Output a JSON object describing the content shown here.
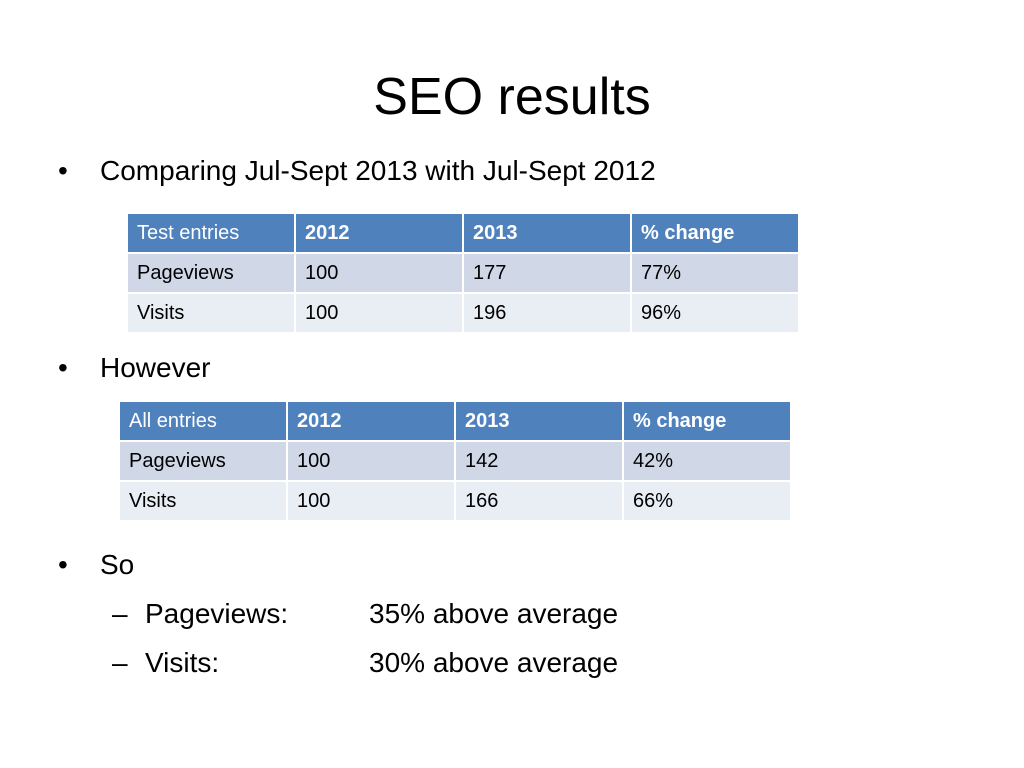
{
  "slide": {
    "title": "SEO results",
    "bullets": [
      "Comparing Jul-Sept 2013 with Jul-Sept 2012",
      "However",
      "So"
    ],
    "bullet_symbol": "•",
    "dash_symbol": "–",
    "sub_bullets": [
      {
        "label": "Pageviews:",
        "value": "35% above average"
      },
      {
        "label": "Visits:",
        "value": "30% above average"
      }
    ]
  },
  "table_test": {
    "header": [
      "Test entries",
      "2012",
      "2013",
      "% change"
    ],
    "rows": [
      [
        "Pageviews",
        "100",
        "177",
        "77%"
      ],
      [
        "Visits",
        "100",
        "196",
        "96%"
      ]
    ]
  },
  "table_all": {
    "header": [
      "All entries",
      "2012",
      "2013",
      "% change"
    ],
    "rows": [
      [
        "Pageviews",
        "100",
        "142",
        "42%"
      ],
      [
        "Visits",
        "100",
        "166",
        "66%"
      ]
    ]
  },
  "colors": {
    "header_bg": "#4f81bd",
    "row_odd_bg": "#d0d8e8",
    "row_even_bg": "#e9edf4"
  }
}
